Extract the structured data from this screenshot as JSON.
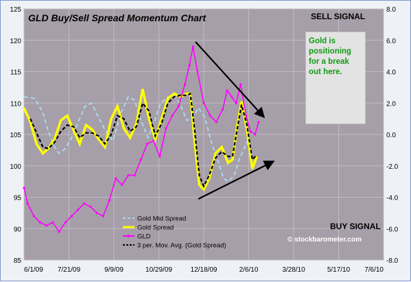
{
  "chart_data": {
    "type": "line",
    "title": "GLD Buy/Sell Spread Momentum Chart",
    "x_ticks": [
      "6/1/09",
      "7/21/09",
      "9/9/09",
      "10/29/09",
      "12/18/09",
      "2/6/10",
      "3/28/10",
      "5/17/10",
      "7/6/10"
    ],
    "xlim": [
      "6/1/09",
      "7/6/10"
    ],
    "y_left": {
      "ylim": [
        85,
        125
      ],
      "ticks": [
        "85",
        "90",
        "95",
        "100",
        "105",
        "110",
        "115",
        "120",
        "125"
      ]
    },
    "y_right": {
      "ylim": [
        -8,
        8
      ],
      "ticks": [
        "-8.0",
        "-6.0",
        "-4.0",
        "-2.0",
        "0.0",
        "2.0",
        "4.0",
        "6.0",
        "8.0"
      ]
    },
    "grid": true,
    "legend_position": "bottom-center",
    "annotations": {
      "sell_signal": "SELL SIGNAL",
      "buy_signal": "BUY SIGNAL",
      "note": "Gold is positioning for a break out here.",
      "watermark": "© stockbarometer.com"
    },
    "series": [
      {
        "name": "Gold Mid Spread",
        "axis": "right",
        "color": "#a6dcef",
        "x": [
          "6/1/09",
          "6/13/09",
          "6/22/09",
          "6/28/09",
          "7/5/09",
          "7/10/09",
          "7/17/09",
          "7/25/09",
          "8/1/09",
          "8/8/09",
          "8/15/09",
          "8/22/09",
          "8/30/09",
          "9/8/09",
          "9/17/09",
          "9/25/09",
          "10/2/09",
          "10/9/09",
          "10/17/09",
          "10/24/09",
          "10/31/09",
          "11/8/09",
          "11/15/09",
          "11/22/09",
          "11/29/09",
          "12/5/09",
          "12/12/09",
          "12/19/09",
          "12/27/09",
          "1/4/10",
          "1/9/10",
          "1/14/10",
          "1/21/10",
          "1/27/10",
          "2/4/10",
          "2/12/10"
        ],
        "values": [
          2.4,
          2.3,
          1.4,
          0.2,
          -0.8,
          -1.2,
          -0.9,
          -0.1,
          0.9,
          1.8,
          2.0,
          1.2,
          0.3,
          -0.4,
          1.4,
          2.4,
          2.2,
          0.9,
          -0.2,
          0.8,
          2.0,
          2.4,
          2.5,
          1.9,
          0.9,
          1.0,
          1.7,
          1.1,
          -0.6,
          -1.9,
          -2.8,
          -3.0,
          -2.6,
          -1.5,
          -0.5,
          -1.8
        ]
      },
      {
        "name": "Gold  Spread",
        "axis": "right",
        "color": "#ffff00",
        "x": [
          "6/1/09",
          "6/8/09",
          "6/15/09",
          "6/22/09",
          "6/28/09",
          "7/5/09",
          "7/12/09",
          "7/19/09",
          "7/26/09",
          "8/2/09",
          "8/9/09",
          "8/16/09",
          "8/23/09",
          "8/30/09",
          "9/6/09",
          "9/13/09",
          "9/20/09",
          "9/27/09",
          "10/4/09",
          "10/11/09",
          "10/18/09",
          "10/25/09",
          "11/1/09",
          "11/8/09",
          "11/15/09",
          "11/22/09",
          "11/29/09",
          "12/3/09",
          "12/8/09",
          "12/13/09",
          "12/18/09",
          "12/24/09",
          "12/31/09",
          "1/7/10",
          "1/14/10",
          "1/19/10",
          "1/24/10",
          "1/29/10",
          "2/4/10",
          "2/10/10",
          "2/15/10"
        ],
        "values": [
          1.7,
          0.8,
          -0.6,
          -1.2,
          -0.9,
          -0.3,
          0.9,
          1.2,
          0.3,
          -0.6,
          0.6,
          0.3,
          -0.3,
          -0.8,
          1.0,
          1.8,
          0.4,
          -0.2,
          0.7,
          2.9,
          1.0,
          -0.3,
          1.0,
          2.3,
          2.6,
          2.4,
          2.6,
          2.6,
          -0.6,
          -3.2,
          -3.5,
          -2.8,
          -1.2,
          -0.8,
          -1.8,
          -1.6,
          0.5,
          2.1,
          0.3,
          -2.2,
          -1.4
        ]
      },
      {
        "name": "GLD",
        "axis": "left",
        "color": "#ff00ff",
        "x": [
          "6/1/09",
          "6/5/09",
          "6/12/09",
          "6/19/09",
          "6/26/09",
          "7/3/09",
          "7/10/09",
          "7/17/09",
          "7/24/09",
          "7/31/09",
          "8/7/09",
          "8/14/09",
          "8/21/09",
          "8/28/09",
          "9/4/09",
          "9/11/09",
          "9/18/09",
          "9/25/09",
          "10/2/09",
          "10/9/09",
          "10/16/09",
          "10/23/09",
          "10/30/09",
          "11/6/09",
          "11/13/09",
          "11/20/09",
          "11/27/09",
          "12/2/09",
          "12/6/09",
          "12/11/09",
          "12/18/09",
          "12/25/09",
          "1/1/10",
          "1/8/10",
          "1/13/10",
          "1/18/10",
          "1/23/10",
          "1/28/10",
          "2/3/10",
          "2/8/10",
          "2/13/10",
          "2/17/10"
        ],
        "values": [
          96.5,
          94,
          92,
          91,
          90.5,
          91,
          89.5,
          91,
          92,
          93,
          94,
          93.5,
          92.5,
          92,
          94.5,
          98,
          97,
          98.5,
          98.5,
          101,
          103.5,
          104,
          101.5,
          106,
          108,
          109.5,
          113,
          116,
          119,
          115,
          110,
          108,
          107,
          109,
          112,
          111,
          110,
          113,
          108,
          105.5,
          105,
          107
        ]
      },
      {
        "name": "3 per. Mov. Avg. (Gold  Spread)",
        "axis": "right",
        "color": "#000000",
        "x": [
          "6/8/09",
          "6/15/09",
          "6/22/09",
          "6/28/09",
          "7/5/09",
          "7/12/09",
          "7/19/09",
          "7/26/09",
          "8/2/09",
          "8/9/09",
          "8/16/09",
          "8/23/09",
          "8/30/09",
          "9/6/09",
          "9/13/09",
          "9/20/09",
          "9/27/09",
          "10/4/09",
          "10/11/09",
          "10/18/09",
          "10/25/09",
          "11/1/09",
          "11/8/09",
          "11/15/09",
          "11/22/09",
          "11/29/09",
          "12/3/09",
          "12/8/09",
          "12/13/09",
          "12/18/09",
          "12/24/09",
          "12/31/09",
          "1/7/10",
          "1/14/10",
          "1/19/10",
          "1/24/10",
          "1/29/10",
          "2/4/10",
          "2/10/10",
          "2/15/10"
        ],
        "values": [
          1.0,
          0.1,
          -0.8,
          -0.9,
          -0.5,
          0.2,
          0.6,
          0.5,
          -0.2,
          0.1,
          0.1,
          -0.1,
          -0.6,
          0.0,
          1.2,
          1.0,
          0.2,
          0.5,
          2.0,
          1.5,
          -0.1,
          0.7,
          2.0,
          2.4,
          2.5,
          2.5,
          2.6,
          0.2,
          -2.6,
          -3.3,
          -2.6,
          -1.5,
          -1.1,
          -1.4,
          -1.4,
          0.3,
          1.9,
          0.6,
          -1.6,
          -1.3
        ]
      }
    ]
  }
}
